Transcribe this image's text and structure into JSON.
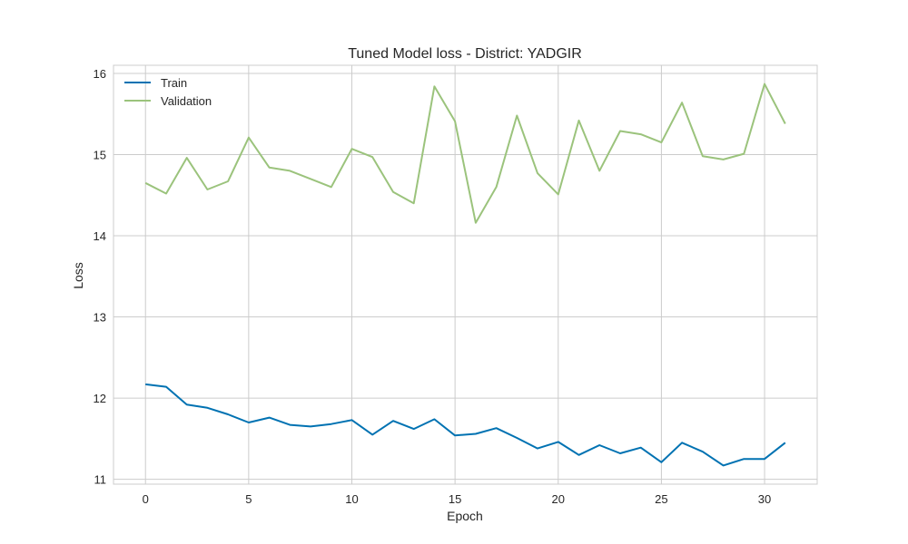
{
  "chart_data": {
    "type": "line",
    "title": "Tuned Model loss - District: YADGIR",
    "xlabel": "Epoch",
    "ylabel": "Loss",
    "xlim": [
      -1.55,
      32.55
    ],
    "ylim": [
      10.94,
      16.1
    ],
    "xticks": [
      0,
      5,
      10,
      15,
      20,
      25,
      30
    ],
    "yticks": [
      11,
      12,
      13,
      14,
      15,
      16
    ],
    "grid": true,
    "legend_position": "top-left",
    "x": [
      0,
      1,
      2,
      3,
      4,
      5,
      6,
      7,
      8,
      9,
      10,
      11,
      12,
      13,
      14,
      15,
      16,
      17,
      18,
      19,
      20,
      21,
      22,
      23,
      24,
      25,
      26,
      27,
      28,
      29,
      30,
      31
    ],
    "series": [
      {
        "name": "Train",
        "color": "#0072B2",
        "values": [
          12.17,
          12.14,
          11.92,
          11.88,
          11.8,
          11.7,
          11.76,
          11.67,
          11.65,
          11.68,
          11.73,
          11.55,
          11.72,
          11.62,
          11.74,
          11.54,
          11.56,
          11.63,
          11.51,
          11.38,
          11.46,
          11.3,
          11.42,
          11.32,
          11.39,
          11.21,
          11.45,
          11.34,
          11.17,
          11.25,
          11.25,
          11.45
        ]
      },
      {
        "name": "Validation",
        "color": "#9BC37C",
        "values": [
          14.65,
          14.52,
          14.96,
          14.57,
          14.67,
          15.21,
          14.84,
          14.8,
          14.7,
          14.6,
          15.07,
          14.97,
          14.54,
          14.4,
          15.84,
          15.41,
          14.16,
          14.6,
          15.48,
          14.77,
          14.51,
          15.42,
          14.8,
          15.29,
          15.25,
          15.15,
          15.64,
          14.98,
          14.94,
          15.01,
          15.87,
          15.38
        ]
      }
    ]
  }
}
